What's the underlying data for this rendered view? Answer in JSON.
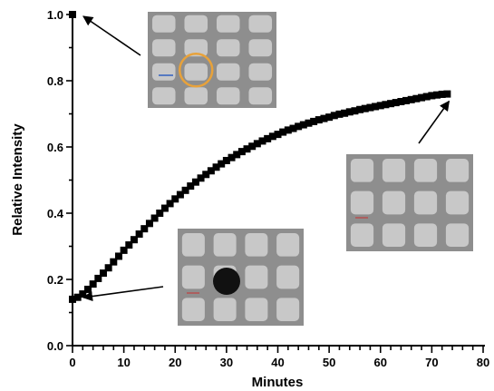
{
  "chart_data": {
    "type": "scatter",
    "title": "",
    "xlabel": "Minutes",
    "ylabel": "Relative Intensity",
    "xlim": [
      0,
      80
    ],
    "ylim": [
      0.0,
      1.0
    ],
    "x_ticks": [
      "0",
      "10",
      "20",
      "30",
      "40",
      "50",
      "60",
      "70",
      "80"
    ],
    "y_ticks": [
      "0.0",
      "0.2",
      "0.4",
      "0.6",
      "0.8",
      "1.0"
    ],
    "grid": false,
    "marker": "square",
    "series": [
      {
        "name": "",
        "color": "#000000",
        "points": [
          [
            0,
            1.0
          ],
          [
            0,
            0.14
          ],
          [
            1,
            0.146
          ],
          [
            2,
            0.156
          ],
          [
            3,
            0.17
          ],
          [
            4,
            0.186
          ],
          [
            5,
            0.203
          ],
          [
            6,
            0.219
          ],
          [
            7,
            0.235
          ],
          [
            8,
            0.253
          ],
          [
            9,
            0.27
          ],
          [
            10,
            0.288
          ],
          [
            11,
            0.304
          ],
          [
            12,
            0.32
          ],
          [
            13,
            0.337
          ],
          [
            14,
            0.353
          ],
          [
            15,
            0.369
          ],
          [
            16,
            0.385
          ],
          [
            17,
            0.4
          ],
          [
            18,
            0.415
          ],
          [
            19,
            0.429
          ],
          [
            20,
            0.443
          ],
          [
            21,
            0.456
          ],
          [
            22,
            0.469
          ],
          [
            23,
            0.482
          ],
          [
            24,
            0.494
          ],
          [
            25,
            0.506
          ],
          [
            26,
            0.517
          ],
          [
            27,
            0.528
          ],
          [
            28,
            0.539
          ],
          [
            29,
            0.549
          ],
          [
            30,
            0.559
          ],
          [
            31,
            0.568
          ],
          [
            32,
            0.577
          ],
          [
            33,
            0.586
          ],
          [
            34,
            0.594
          ],
          [
            35,
            0.602
          ],
          [
            36,
            0.61
          ],
          [
            37,
            0.618
          ],
          [
            38,
            0.625
          ],
          [
            39,
            0.632
          ],
          [
            40,
            0.638
          ],
          [
            41,
            0.645
          ],
          [
            42,
            0.651
          ],
          [
            43,
            0.656
          ],
          [
            44,
            0.662
          ],
          [
            45,
            0.667
          ],
          [
            46,
            0.672
          ],
          [
            47,
            0.677
          ],
          [
            48,
            0.682
          ],
          [
            49,
            0.686
          ],
          [
            50,
            0.69
          ],
          [
            51,
            0.695
          ],
          [
            52,
            0.699
          ],
          [
            53,
            0.702
          ],
          [
            54,
            0.706
          ],
          [
            55,
            0.709
          ],
          [
            56,
            0.713
          ],
          [
            57,
            0.716
          ],
          [
            58,
            0.719
          ],
          [
            59,
            0.722
          ],
          [
            60,
            0.725
          ],
          [
            61,
            0.728
          ],
          [
            62,
            0.731
          ],
          [
            63,
            0.734
          ],
          [
            64,
            0.737
          ],
          [
            65,
            0.74
          ],
          [
            66,
            0.743
          ],
          [
            67,
            0.746
          ],
          [
            68,
            0.749
          ],
          [
            69,
            0.752
          ],
          [
            70,
            0.755
          ],
          [
            71,
            0.757
          ],
          [
            72,
            0.759
          ],
          [
            73,
            0.76
          ]
        ]
      }
    ],
    "annotations": [
      {
        "type": "arrow",
        "from_image": "inset-top-left",
        "to": [
          0,
          1.0
        ]
      },
      {
        "type": "arrow",
        "from_image": "inset-right",
        "to": [
          73,
          0.76
        ]
      },
      {
        "type": "arrow",
        "from_image": "inset-bottom",
        "to": [
          0,
          0.14
        ]
      }
    ],
    "insets": [
      {
        "name": "inset-top-left",
        "description_visible": "microscope image of square grid with orange circle"
      },
      {
        "name": "inset-right",
        "description_visible": "microscope image of square grid"
      },
      {
        "name": "inset-bottom",
        "description_visible": "microscope image of square grid with dark spot"
      }
    ],
    "colors": {
      "inset_bg": "#8e8e8e",
      "inset_square": "#c8c8c8",
      "circle": "#e8a23a",
      "spot": "#111111"
    }
  }
}
